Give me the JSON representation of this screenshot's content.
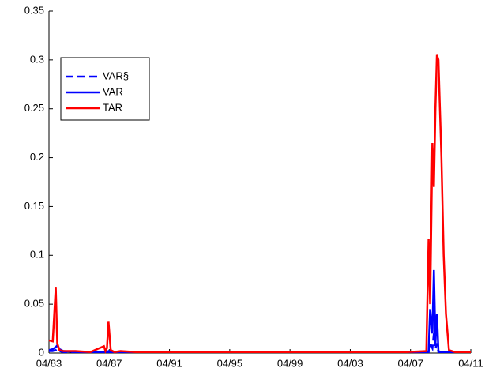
{
  "chart_data": {
    "type": "line",
    "x": [
      1983.25,
      1983.5,
      1983.7,
      1983.8,
      1983.95,
      1984.2,
      1985,
      1986,
      1986.9,
      1987.0,
      1987.1,
      1987.2,
      1987.35,
      1987.6,
      1988,
      1989,
      1991,
      1995,
      1999,
      2003,
      2007,
      2008.3,
      2008.45,
      2008.55,
      2008.7,
      2008.8,
      2008.9,
      2009.0,
      2009.1,
      2009.3,
      2009.45,
      2009.6,
      2009.8,
      2010.2,
      2011.25
    ],
    "series": [
      {
        "name": "VAR§",
        "color": "#0000ff",
        "dash": true,
        "values": [
          0.002,
          0.002,
          0.003,
          0.004,
          0.002,
          0.001,
          0.001,
          0.001,
          0.001,
          0.001,
          0.001,
          0.001,
          0.001,
          0.001,
          0.001,
          0.001,
          0.001,
          0.001,
          0.001,
          0.001,
          0.001,
          0.001,
          0.001,
          0.01,
          0.005,
          0.02,
          0.004,
          0.01,
          0.001,
          0.001,
          0.001,
          0.001,
          0.001,
          0.001,
          0.001
        ]
      },
      {
        "name": "VAR",
        "color": "#0000ff",
        "dash": false,
        "values": [
          0.003,
          0.004,
          0.006,
          0.008,
          0.004,
          0.002,
          0.001,
          0.001,
          0.001,
          0.001,
          0.001,
          0.002,
          0.001,
          0.001,
          0.001,
          0.001,
          0.001,
          0.001,
          0.001,
          0.001,
          0.001,
          0.001,
          0.002,
          0.045,
          0.02,
          0.085,
          0.01,
          0.04,
          0.002,
          0.001,
          0.001,
          0.001,
          0.001,
          0.001,
          0.001
        ]
      },
      {
        "name": "TAR",
        "color": "#ff0000",
        "dash": false,
        "values": [
          0.013,
          0.012,
          0.067,
          0.01,
          0.003,
          0.002,
          0.002,
          0.001,
          0.007,
          0.002,
          0.005,
          0.032,
          0.003,
          0.001,
          0.002,
          0.001,
          0.001,
          0.001,
          0.001,
          0.001,
          0.001,
          0.002,
          0.117,
          0.05,
          0.215,
          0.17,
          0.25,
          0.305,
          0.3,
          0.2,
          0.1,
          0.04,
          0.003,
          0.001,
          0.001
        ]
      }
    ],
    "xlim": [
      1983.25,
      2011.25
    ],
    "xticks": [
      {
        "value": 1983.25,
        "label": "04/83"
      },
      {
        "value": 1987.25,
        "label": "04/87"
      },
      {
        "value": 1991.25,
        "label": "04/91"
      },
      {
        "value": 1995.25,
        "label": "04/95"
      },
      {
        "value": 1999.25,
        "label": "04/99"
      },
      {
        "value": 2003.25,
        "label": "04/03"
      },
      {
        "value": 2007.25,
        "label": "04/07"
      },
      {
        "value": 2011.25,
        "label": "04/11"
      }
    ],
    "ylim": [
      0,
      0.35
    ],
    "yticks": [
      0,
      0.05,
      0.1,
      0.15,
      0.2,
      0.25,
      0.3,
      0.35
    ]
  }
}
